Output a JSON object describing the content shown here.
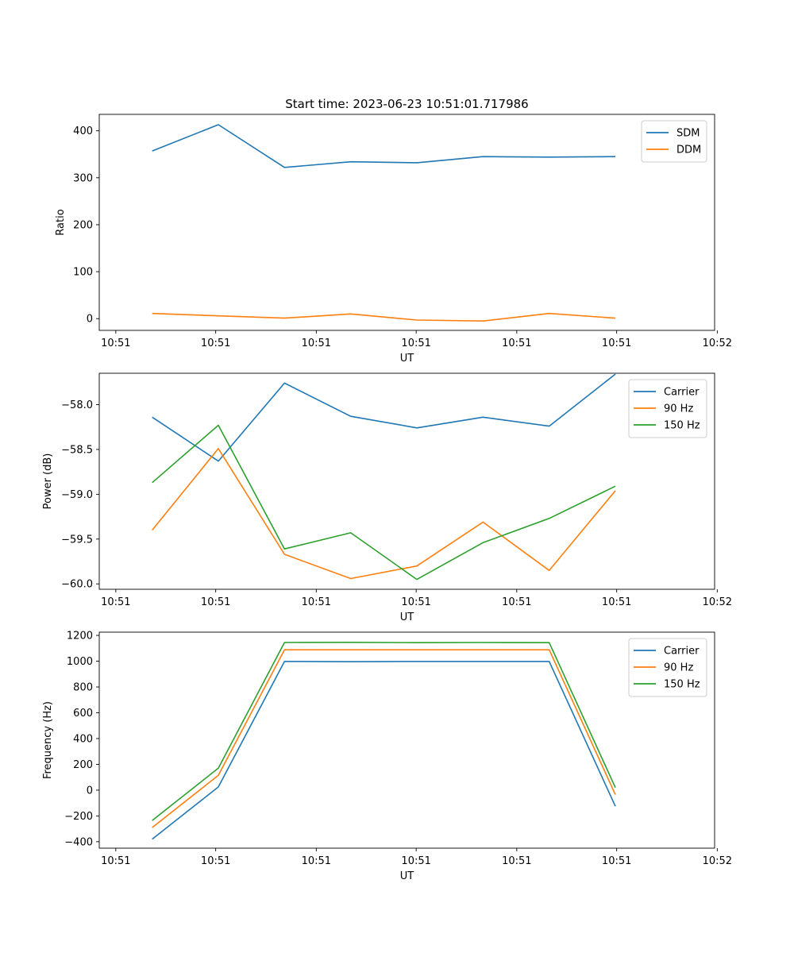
{
  "chart_data": [
    {
      "type": "line",
      "title": "Start time: 2023-06-23 10:51:01.717986",
      "xlabel": "UT",
      "ylabel": "Ratio",
      "x": [
        1,
        2,
        3,
        4,
        5,
        6,
        7,
        8
      ],
      "xlim": [
        0.2,
        9.5
      ],
      "xticks": [
        0.45,
        1.96,
        3.48,
        4.99,
        6.51,
        8.02,
        9.54
      ],
      "xtick_labels": [
        "10:51",
        "10:51",
        "10:51",
        "10:51",
        "10:51",
        "10:51",
        "10:52"
      ],
      "ylim": [
        -25,
        435
      ],
      "yticks": [
        0,
        100,
        200,
        300,
        400
      ],
      "ytick_labels": [
        "0",
        "100",
        "200",
        "300",
        "400"
      ],
      "legend": "top-right",
      "grid": false,
      "series": [
        {
          "name": "SDM",
          "color": "#1f77b4",
          "values": [
            357,
            413,
            322,
            334,
            332,
            345,
            344,
            345
          ]
        },
        {
          "name": "DDM",
          "color": "#ff7f0e",
          "values": [
            11,
            6,
            1,
            10,
            -3,
            -5,
            11,
            1
          ]
        }
      ]
    },
    {
      "type": "line",
      "title": "",
      "xlabel": "UT",
      "ylabel": "Power (dB)",
      "x": [
        1,
        2,
        3,
        4,
        5,
        6,
        7,
        8
      ],
      "xlim": [
        0.2,
        9.5
      ],
      "xticks": [
        0.45,
        1.96,
        3.48,
        4.99,
        6.51,
        8.02,
        9.54
      ],
      "xtick_labels": [
        "10:51",
        "10:51",
        "10:51",
        "10:51",
        "10:51",
        "10:51",
        "10:52"
      ],
      "ylim": [
        -60.06,
        -57.65
      ],
      "yticks": [
        -60.0,
        -59.5,
        -59.0,
        -58.5,
        -58.0
      ],
      "ytick_labels": [
        "−60.0",
        "−59.5",
        "−59.0",
        "−58.5",
        "−58.0"
      ],
      "legend": "top-right",
      "grid": false,
      "series": [
        {
          "name": "Carrier",
          "color": "#1f77b4",
          "values": [
            -58.14,
            -58.63,
            -57.76,
            -58.13,
            -58.26,
            -58.14,
            -58.24,
            -57.66
          ]
        },
        {
          "name": "90 Hz",
          "color": "#ff7f0e",
          "values": [
            -59.4,
            -58.49,
            -59.67,
            -59.94,
            -59.8,
            -59.31,
            -59.85,
            -58.96
          ]
        },
        {
          "name": "150 Hz",
          "color": "#2ca02c",
          "values": [
            -58.87,
            -58.23,
            -59.61,
            -59.43,
            -59.95,
            -59.54,
            -59.27,
            -58.91
          ]
        }
      ]
    },
    {
      "type": "line",
      "title": "",
      "xlabel": "UT",
      "ylabel": "Frequency (Hz)",
      "x": [
        1,
        2,
        3,
        4,
        5,
        6,
        7,
        8
      ],
      "xlim": [
        0.2,
        9.5
      ],
      "xticks": [
        0.45,
        1.96,
        3.48,
        4.99,
        6.51,
        8.02,
        9.54
      ],
      "xtick_labels": [
        "10:51",
        "10:51",
        "10:51",
        "10:51",
        "10:51",
        "10:51",
        "10:52"
      ],
      "ylim": [
        -450,
        1225
      ],
      "yticks": [
        -400,
        -200,
        0,
        200,
        400,
        600,
        800,
        1000,
        1200
      ],
      "ytick_labels": [
        "−400",
        "−200",
        "0",
        "200",
        "400",
        "600",
        "800",
        "1000",
        "1200"
      ],
      "legend": "top-right",
      "grid": false,
      "series": [
        {
          "name": "Carrier",
          "color": "#1f77b4",
          "values": [
            -380,
            25,
            998,
            996,
            998,
            998,
            998,
            -125
          ]
        },
        {
          "name": "90 Hz",
          "color": "#ff7f0e",
          "values": [
            -290,
            115,
            1088,
            1088,
            1088,
            1088,
            1088,
            -35
          ]
        },
        {
          "name": "150 Hz",
          "color": "#2ca02c",
          "values": [
            -235,
            170,
            1145,
            1146,
            1144,
            1145,
            1144,
            20
          ]
        }
      ]
    }
  ]
}
